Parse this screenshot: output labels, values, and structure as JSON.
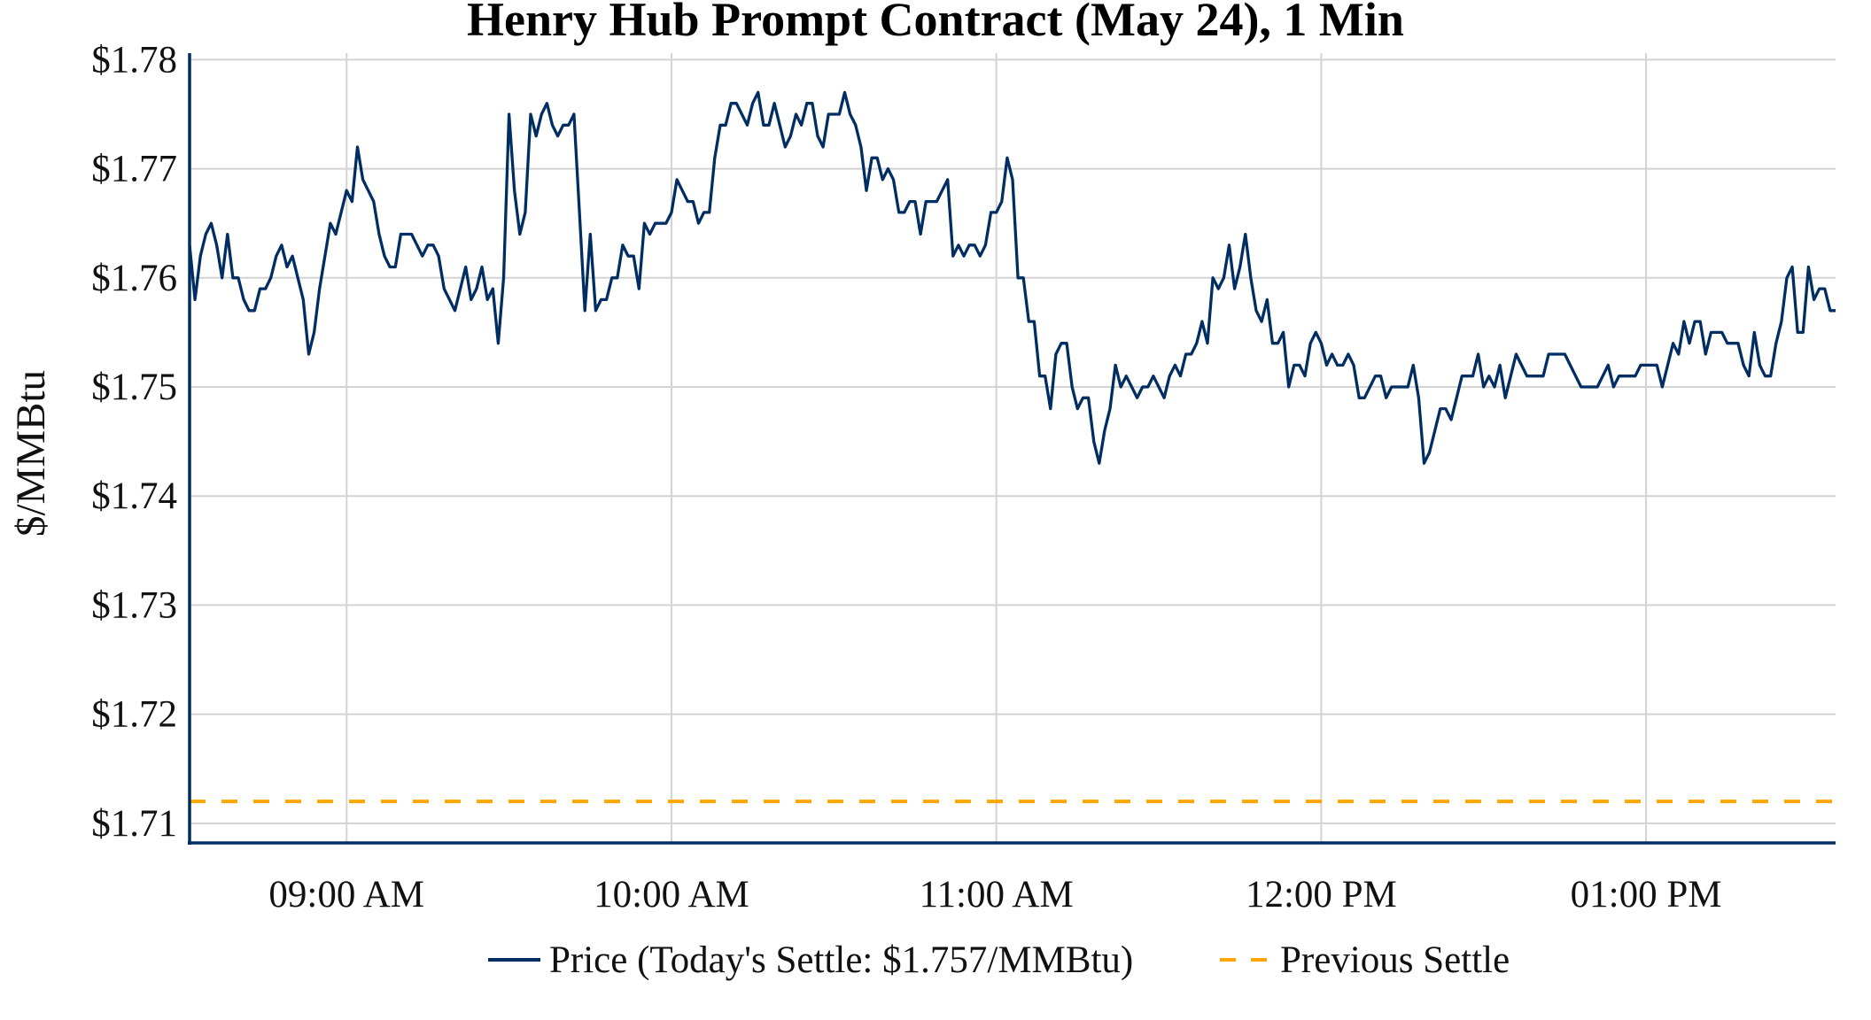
{
  "chart_data": {
    "type": "line",
    "title": "Henry Hub Prompt Contract (May 24), 1 Min",
    "xlabel": "",
    "ylabel": "$/MMBtu",
    "ylim": [
      1.7082,
      1.7806
    ],
    "xlim": [
      "08:31",
      "13:35"
    ],
    "grid": true,
    "legend_position": "bottom",
    "y_ticks": [
      {
        "value": 1.71,
        "label": "$1.71"
      },
      {
        "value": 1.72,
        "label": "$1.72"
      },
      {
        "value": 1.73,
        "label": "$1.73"
      },
      {
        "value": 1.74,
        "label": "$1.74"
      },
      {
        "value": 1.75,
        "label": "$1.75"
      },
      {
        "value": 1.76,
        "label": "$1.76"
      },
      {
        "value": 1.77,
        "label": "$1.77"
      },
      {
        "value": 1.78,
        "label": "$1.78"
      }
    ],
    "x_ticks": [
      {
        "value": "09:00",
        "label": "09:00 AM"
      },
      {
        "value": "10:00",
        "label": "10:00 AM"
      },
      {
        "value": "11:00",
        "label": "11:00 AM"
      },
      {
        "value": "12:00",
        "label": "12:00 PM"
      },
      {
        "value": "13:00",
        "label": "01:00 PM"
      }
    ],
    "x": [
      "08:31",
      "08:32",
      "08:33",
      "08:34",
      "08:35",
      "08:36",
      "08:37",
      "08:38",
      "08:39",
      "08:40",
      "08:41",
      "08:42",
      "08:43",
      "08:44",
      "08:45",
      "08:46",
      "08:47",
      "08:48",
      "08:49",
      "08:50",
      "08:51",
      "08:52",
      "08:53",
      "08:54",
      "08:55",
      "08:56",
      "08:57",
      "08:58",
      "08:59",
      "09:00",
      "09:01",
      "09:02",
      "09:03",
      "09:04",
      "09:05",
      "09:06",
      "09:07",
      "09:08",
      "09:09",
      "09:10",
      "09:11",
      "09:12",
      "09:13",
      "09:14",
      "09:15",
      "09:16",
      "09:17",
      "09:18",
      "09:19",
      "09:20",
      "09:21",
      "09:22",
      "09:23",
      "09:24",
      "09:25",
      "09:26",
      "09:27",
      "09:28",
      "09:29",
      "09:30",
      "09:31",
      "09:32",
      "09:33",
      "09:34",
      "09:35",
      "09:36",
      "09:37",
      "09:38",
      "09:39",
      "09:40",
      "09:41",
      "09:42",
      "09:43",
      "09:44",
      "09:45",
      "09:46",
      "09:47",
      "09:48",
      "09:49",
      "09:50",
      "09:51",
      "09:52",
      "09:53",
      "09:54",
      "09:55",
      "09:56",
      "09:57",
      "09:58",
      "09:59",
      "10:00",
      "10:01",
      "10:02",
      "10:03",
      "10:04",
      "10:05",
      "10:06",
      "10:07",
      "10:08",
      "10:09",
      "10:10",
      "10:11",
      "10:12",
      "10:13",
      "10:14",
      "10:15",
      "10:16",
      "10:17",
      "10:18",
      "10:19",
      "10:20",
      "10:21",
      "10:22",
      "10:23",
      "10:24",
      "10:25",
      "10:26",
      "10:27",
      "10:28",
      "10:29",
      "10:30",
      "10:31",
      "10:32",
      "10:33",
      "10:34",
      "10:35",
      "10:36",
      "10:37",
      "10:38",
      "10:39",
      "10:40",
      "10:41",
      "10:42",
      "10:43",
      "10:44",
      "10:45",
      "10:46",
      "10:47",
      "10:48",
      "10:49",
      "10:50",
      "10:51",
      "10:52",
      "10:53",
      "10:54",
      "10:55",
      "10:56",
      "10:57",
      "10:58",
      "10:59",
      "11:00",
      "11:01",
      "11:02",
      "11:03",
      "11:04",
      "11:05",
      "11:06",
      "11:07",
      "11:08",
      "11:09",
      "11:10",
      "11:11",
      "11:12",
      "11:13",
      "11:14",
      "11:15",
      "11:16",
      "11:17",
      "11:18",
      "11:19",
      "11:20",
      "11:21",
      "11:22",
      "11:23",
      "11:24",
      "11:25",
      "11:26",
      "11:27",
      "11:28",
      "11:29",
      "11:30",
      "11:31",
      "11:32",
      "11:33",
      "11:34",
      "11:35",
      "11:36",
      "11:37",
      "11:38",
      "11:39",
      "11:40",
      "11:41",
      "11:42",
      "11:43",
      "11:44",
      "11:45",
      "11:46",
      "11:47",
      "11:48",
      "11:49",
      "11:50",
      "11:51",
      "11:52",
      "11:53",
      "11:54",
      "11:55",
      "11:56",
      "11:57",
      "11:58",
      "11:59",
      "12:00",
      "12:01",
      "12:02",
      "12:03",
      "12:04",
      "12:05",
      "12:06",
      "12:07",
      "12:08",
      "12:09",
      "12:10",
      "12:11",
      "12:12",
      "12:13",
      "12:14",
      "12:15",
      "12:16",
      "12:17",
      "12:18",
      "12:19",
      "12:20",
      "12:21",
      "12:22",
      "12:23",
      "12:24",
      "12:25",
      "12:26",
      "12:27",
      "12:28",
      "12:29",
      "12:30",
      "12:31",
      "12:32",
      "12:33",
      "12:34",
      "12:35",
      "12:36",
      "12:37",
      "12:38",
      "12:39",
      "12:40",
      "12:41",
      "12:42",
      "12:43",
      "12:44",
      "12:45",
      "12:46",
      "12:47",
      "12:48",
      "12:49",
      "12:50",
      "12:51",
      "12:52",
      "12:53",
      "12:54",
      "12:55",
      "12:56",
      "12:57",
      "12:58",
      "12:59",
      "13:00",
      "13:01",
      "13:02",
      "13:03",
      "13:04",
      "13:05",
      "13:06",
      "13:07",
      "13:08",
      "13:09",
      "13:10",
      "13:11",
      "13:12",
      "13:13",
      "13:14",
      "13:15",
      "13:16",
      "13:17",
      "13:18",
      "13:19",
      "13:20",
      "13:21",
      "13:22",
      "13:23",
      "13:24",
      "13:25",
      "13:26",
      "13:27",
      "13:28",
      "13:29",
      "13:30",
      "13:31",
      "13:32",
      "13:33",
      "13:34",
      "13:35"
    ],
    "series": [
      {
        "name": "Price (Today's Settle: $1.757/MMBtu)",
        "color": "#002D62",
        "style": "solid",
        "values": [
          1.763,
          1.758,
          1.762,
          1.764,
          1.765,
          1.763,
          1.76,
          1.764,
          1.76,
          1.76,
          1.758,
          1.757,
          1.757,
          1.759,
          1.759,
          1.76,
          1.762,
          1.763,
          1.761,
          1.762,
          1.76,
          1.758,
          1.753,
          1.755,
          1.759,
          1.762,
          1.765,
          1.764,
          1.766,
          1.768,
          1.767,
          1.772,
          1.769,
          1.768,
          1.767,
          1.764,
          1.762,
          1.761,
          1.761,
          1.764,
          1.764,
          1.764,
          1.763,
          1.762,
          1.763,
          1.763,
          1.762,
          1.759,
          1.758,
          1.757,
          1.759,
          1.761,
          1.758,
          1.759,
          1.761,
          1.758,
          1.759,
          1.754,
          1.76,
          1.775,
          1.768,
          1.764,
          1.766,
          1.775,
          1.773,
          1.775,
          1.776,
          1.774,
          1.773,
          1.774,
          1.774,
          1.775,
          1.766,
          1.757,
          1.764,
          1.757,
          1.758,
          1.758,
          1.76,
          1.76,
          1.763,
          1.762,
          1.762,
          1.759,
          1.765,
          1.764,
          1.765,
          1.765,
          1.765,
          1.766,
          1.769,
          1.768,
          1.767,
          1.767,
          1.765,
          1.766,
          1.766,
          1.771,
          1.774,
          1.774,
          1.776,
          1.776,
          1.775,
          1.774,
          1.776,
          1.777,
          1.774,
          1.774,
          1.776,
          1.774,
          1.772,
          1.773,
          1.775,
          1.774,
          1.776,
          1.776,
          1.773,
          1.772,
          1.775,
          1.775,
          1.775,
          1.777,
          1.775,
          1.774,
          1.772,
          1.768,
          1.771,
          1.771,
          1.769,
          1.77,
          1.769,
          1.766,
          1.766,
          1.767,
          1.767,
          1.764,
          1.767,
          1.767,
          1.767,
          1.768,
          1.769,
          1.762,
          1.763,
          1.762,
          1.763,
          1.763,
          1.762,
          1.763,
          1.766,
          1.766,
          1.767,
          1.771,
          1.769,
          1.76,
          1.76,
          1.756,
          1.756,
          1.751,
          1.751,
          1.748,
          1.753,
          1.754,
          1.754,
          1.75,
          1.748,
          1.749,
          1.749,
          1.745,
          1.743,
          1.746,
          1.748,
          1.752,
          1.75,
          1.751,
          1.75,
          1.749,
          1.75,
          1.75,
          1.751,
          1.75,
          1.749,
          1.751,
          1.752,
          1.751,
          1.753,
          1.753,
          1.754,
          1.756,
          1.754,
          1.76,
          1.759,
          1.76,
          1.763,
          1.759,
          1.761,
          1.764,
          1.76,
          1.757,
          1.756,
          1.758,
          1.754,
          1.754,
          1.755,
          1.75,
          1.752,
          1.752,
          1.751,
          1.754,
          1.755,
          1.754,
          1.752,
          1.753,
          1.752,
          1.752,
          1.753,
          1.752,
          1.749,
          1.749,
          1.75,
          1.751,
          1.751,
          1.749,
          1.75,
          1.75,
          1.75,
          1.75,
          1.752,
          1.749,
          1.743,
          1.744,
          1.746,
          1.748,
          1.748,
          1.747,
          1.749,
          1.751,
          1.751,
          1.751,
          1.753,
          1.75,
          1.751,
          1.75,
          1.752,
          1.749,
          1.751,
          1.753,
          1.752,
          1.751,
          1.751,
          1.751,
          1.751,
          1.753,
          1.753,
          1.753,
          1.753,
          1.752,
          1.751,
          1.75,
          1.75,
          1.75,
          1.75,
          1.751,
          1.752,
          1.75,
          1.751,
          1.751,
          1.751,
          1.751,
          1.752,
          1.752,
          1.752,
          1.752,
          1.75,
          1.752,
          1.754,
          1.753,
          1.756,
          1.754,
          1.756,
          1.756,
          1.753,
          1.755,
          1.755,
          1.755,
          1.754,
          1.754,
          1.754,
          1.752,
          1.751,
          1.755,
          1.752,
          1.751,
          1.751,
          1.754,
          1.756,
          1.76,
          1.761,
          1.755,
          1.755,
          1.761,
          1.758,
          1.759,
          1.759,
          1.757,
          1.757
        ]
      },
      {
        "name": "Previous Settle",
        "color": "#FFA500",
        "style": "dashed",
        "value": 1.712
      }
    ],
    "legend": [
      {
        "label": "Price (Today's Settle: $1.757/MMBtu)",
        "color": "#002D62",
        "style": "solid"
      },
      {
        "label": "Previous Settle",
        "color": "#FFA500",
        "style": "dashed"
      }
    ],
    "colors": {
      "axis": "#002D62",
      "grid": "#D3D3D3"
    }
  }
}
